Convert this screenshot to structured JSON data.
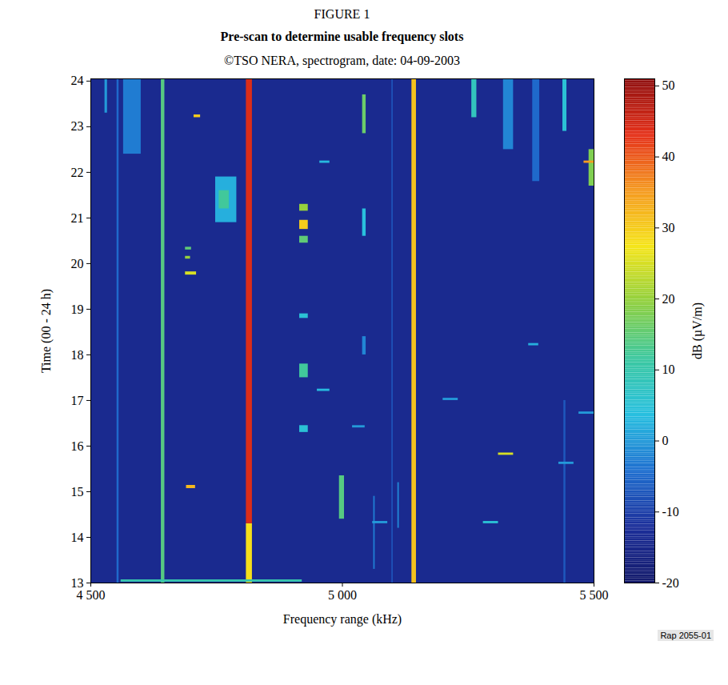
{
  "chart_data": {
    "type": "heatmap",
    "title": "FIGURE 1",
    "subtitle": "Pre-scan to determine usable frequency slots",
    "annotations": [
      "©TSO NERA, spectrogram, date: 04-09-2003",
      "Rap 2055-01"
    ],
    "xlabel": "Frequency range (kHz)",
    "ylabel": "Time (00 - 24 h)",
    "xlim": [
      4500,
      5500
    ],
    "xticks": [
      {
        "value": 4500,
        "label": "4 500"
      },
      {
        "value": 5000,
        "label": "5 000"
      },
      {
        "value": 5500,
        "label": "5 500"
      }
    ],
    "ylim": [
      13,
      24.05
    ],
    "yticks": [
      13,
      14,
      15,
      16,
      17,
      18,
      19,
      20,
      21,
      22,
      23,
      24
    ],
    "background": -14,
    "cells": [
      {
        "x": [
          4809,
          4821
        ],
        "y": [
          13,
          14.3
        ],
        "value": 28
      },
      {
        "x": [
          4809,
          4821
        ],
        "y": [
          14.3,
          24.05
        ],
        "value": 44
      },
      {
        "x": [
          5138,
          5147
        ],
        "y": [
          13,
          24.05
        ],
        "value": 31
      },
      {
        "x": [
          4640,
          4647
        ],
        "y": [
          13,
          24.05
        ],
        "value": 14
      },
      {
        "x": [
          4552,
          4556
        ],
        "y": [
          13,
          24.05
        ],
        "value": -5
      },
      {
        "x": [
          4565,
          4600
        ],
        "y": [
          22.4,
          24.05
        ],
        "value": -3
      },
      {
        "x": [
          4528,
          4533
        ],
        "y": [
          23.3,
          24.05
        ],
        "value": 0
      },
      {
        "x": [
          4748,
          4790
        ],
        "y": [
          20.9,
          21.9
        ],
        "value": 2
      },
      {
        "x": [
          4755,
          4775
        ],
        "y": [
          21.2,
          21.6
        ],
        "value": 12
      },
      {
        "x": [
          4915,
          4932
        ],
        "y": [
          21.15,
          21.3
        ],
        "value": 20
      },
      {
        "x": [
          4915,
          4932
        ],
        "y": [
          20.75,
          20.95
        ],
        "value": 30
      },
      {
        "x": [
          4915,
          4932
        ],
        "y": [
          20.45,
          20.6
        ],
        "value": 15
      },
      {
        "x": [
          4915,
          4932
        ],
        "y": [
          17.5,
          17.8
        ],
        "value": 12
      },
      {
        "x": [
          4915,
          4932
        ],
        "y": [
          16.3,
          16.45
        ],
        "value": 5
      },
      {
        "x": [
          4915,
          4932
        ],
        "y": [
          18.8,
          18.9
        ],
        "value": 5
      },
      {
        "x": [
          4994,
          5004
        ],
        "y": [
          14.4,
          15.35
        ],
        "value": 14
      },
      {
        "x": [
          5040,
          5047
        ],
        "y": [
          22.85,
          23.7
        ],
        "value": 16
      },
      {
        "x": [
          5040,
          5047
        ],
        "y": [
          20.6,
          21.2
        ],
        "value": 4
      },
      {
        "x": [
          5040,
          5047
        ],
        "y": [
          18,
          18.4
        ],
        "value": -2
      },
      {
        "x": [
          5098,
          5101
        ],
        "y": [
          13,
          24.05
        ],
        "value": -8
      },
      {
        "x": [
          5110,
          5113
        ],
        "y": [
          14.2,
          15.2
        ],
        "value": -2
      },
      {
        "x": [
          5062,
          5065
        ],
        "y": [
          13.3,
          14.9
        ],
        "value": -3
      },
      {
        "x": [
          5257,
          5267
        ],
        "y": [
          23.2,
          24.05
        ],
        "value": 8
      },
      {
        "x": [
          5320,
          5340
        ],
        "y": [
          22.5,
          24.05
        ],
        "value": -2
      },
      {
        "x": [
          5378,
          5392
        ],
        "y": [
          21.8,
          24.05
        ],
        "value": -5
      },
      {
        "x": [
          5438,
          5446
        ],
        "y": [
          22.9,
          24.05
        ],
        "value": 5
      },
      {
        "x": [
          5440,
          5444
        ],
        "y": [
          13,
          17
        ],
        "value": -7
      },
      {
        "x": [
          5490,
          5500
        ],
        "y": [
          21.7,
          22.5
        ],
        "value": 18
      },
      {
        "x": [
          4688,
          4710
        ],
        "y": [
          19.75,
          19.82
        ],
        "value": 25
      },
      {
        "x": [
          4690,
          4708
        ],
        "y": [
          15.07,
          15.14
        ],
        "value": 32
      },
      {
        "x": [
          4705,
          4718
        ],
        "y": [
          23.2,
          23.26
        ],
        "value": 30
      },
      {
        "x": [
          4688,
          4698
        ],
        "y": [
          20.1,
          20.16
        ],
        "value": 20
      },
      {
        "x": [
          4688,
          4700
        ],
        "y": [
          20.3,
          20.36
        ],
        "value": 15
      },
      {
        "x": [
          4560,
          4920
        ],
        "y": [
          13.02,
          13.07
        ],
        "value": 10
      },
      {
        "x": [
          4950,
          4975
        ],
        "y": [
          17.2,
          17.25
        ],
        "value": 3
      },
      {
        "x": [
          5020,
          5045
        ],
        "y": [
          16.4,
          16.45
        ],
        "value": 0
      },
      {
        "x": [
          5310,
          5340
        ],
        "y": [
          15.8,
          15.85
        ],
        "value": 25
      },
      {
        "x": [
          5430,
          5460
        ],
        "y": [
          15.6,
          15.65
        ],
        "value": 0
      },
      {
        "x": [
          5200,
          5230
        ],
        "y": [
          17,
          17.05
        ],
        "value": 0
      },
      {
        "x": [
          5060,
          5090
        ],
        "y": [
          14.3,
          14.35
        ],
        "value": 0
      },
      {
        "x": [
          5280,
          5310
        ],
        "y": [
          14.3,
          14.35
        ],
        "value": 5
      },
      {
        "x": [
          5470,
          5500
        ],
        "y": [
          16.7,
          16.75
        ],
        "value": 0
      },
      {
        "x": [
          5370,
          5390
        ],
        "y": [
          18.2,
          18.25
        ],
        "value": 2
      },
      {
        "x": [
          4955,
          4975
        ],
        "y": [
          22.2,
          22.25
        ],
        "value": 3
      },
      {
        "x": [
          5480,
          5500
        ],
        "y": [
          22.2,
          22.25
        ],
        "value": 35
      }
    ],
    "colorbar": {
      "label": "dB (µV/m)",
      "range": [
        -20,
        51
      ],
      "ticks": [
        -20,
        -10,
        0,
        10,
        20,
        30,
        40,
        50
      ]
    }
  }
}
